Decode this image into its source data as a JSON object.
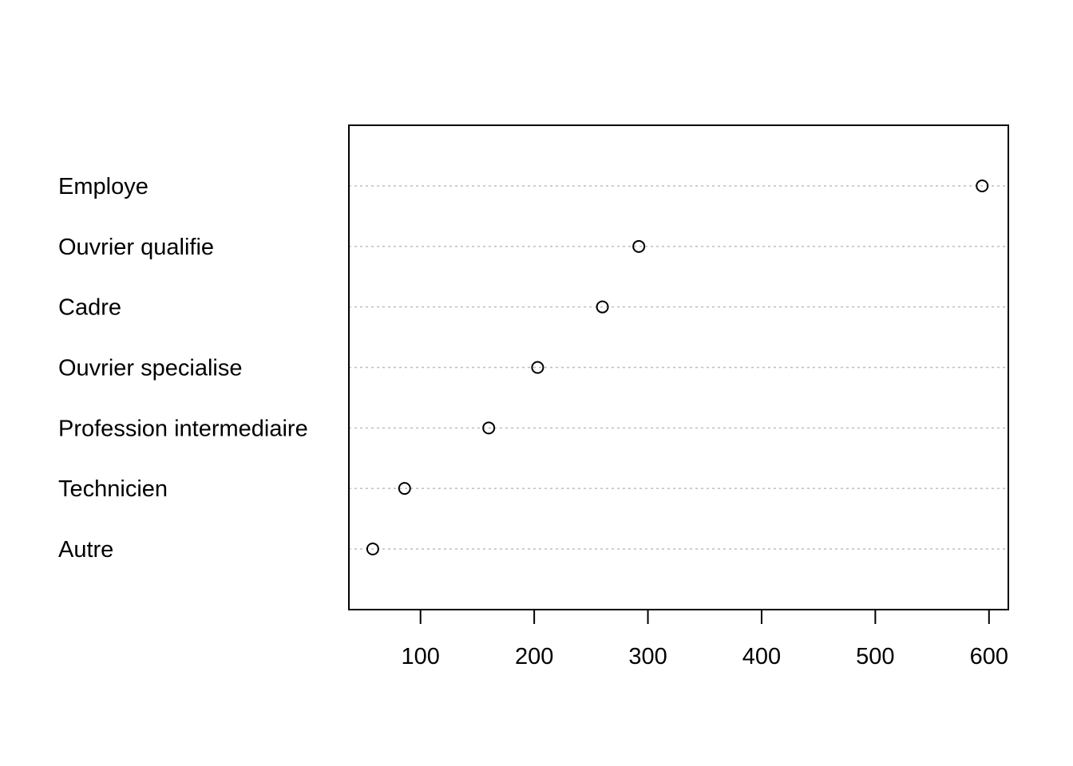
{
  "chart_data": {
    "type": "scatter",
    "subtype": "dotchart",
    "title": "",
    "xlabel": "",
    "ylabel": "",
    "categories": [
      "Autre",
      "Technicien",
      "Profession intermediaire",
      "Ouvrier specialise",
      "Cadre",
      "Ouvrier qualifie",
      "Employe"
    ],
    "values": [
      58,
      86,
      160,
      203,
      260,
      292,
      594
    ],
    "xlim": [
      37,
      617
    ],
    "x_ticks": [
      100,
      200,
      300,
      400,
      500,
      600
    ],
    "grid": "horizontal dotted",
    "point_shape": "open circle",
    "colors": {
      "points": "#000000",
      "grid": "#bebebe",
      "frame": "#000000"
    }
  }
}
